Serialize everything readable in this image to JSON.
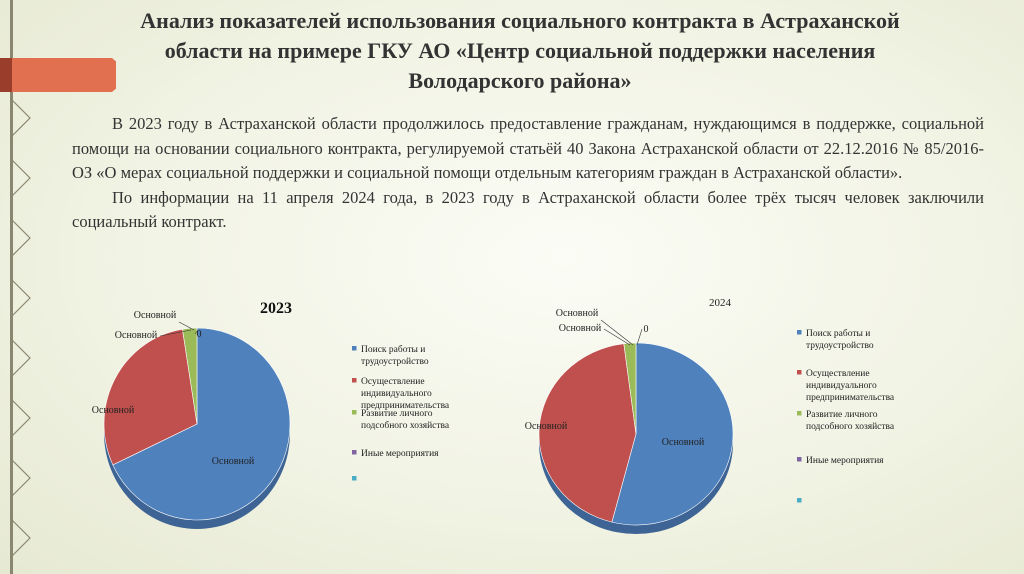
{
  "slide": {
    "title": "Анализ показателей использования социального контракта в Астраханской области на примере ГКУ АО «Центр социальной поддержки населения Володарского района»",
    "paragraphs": [
      "В 2023 году в Астраханской области продолжилось предоставление гражданам, нуждающимся в поддержке, социальной помощи на основании социального контракта, регулируемой статьёй 40 Закона Астраханской области от 22.12.2016 № 85/2016-ОЗ «О мерах социальной поддержки и социальной помощи отдельным категориям граждан в Астраханской области».",
      "По информации на 11 апреля 2024 года, в 2023 году в Астраханской области более трёх тысяч человек заключили социальный контракт."
    ],
    "colors": {
      "accent": "#e07050",
      "accent_dark": "#9a3d2a",
      "side_line": "#8a8670",
      "blue": "#4f81bd",
      "red": "#c0504d",
      "green": "#9bbb59",
      "purple": "#8064a2",
      "cyan": "#4bacc6"
    }
  },
  "chart_data": [
    {
      "type": "pie",
      "title": "2023",
      "categories": [
        "Поиск работы и трудоустройство",
        "Осуществление индивидуального предпринимательства",
        "Развитие личного подсобного хозяйства",
        "Иные мероприятия",
        ""
      ],
      "values": [
        68,
        29.5,
        2.5,
        0,
        0
      ],
      "data_labels": [
        "Основной",
        "Основной",
        "Основной",
        "Основной",
        "0"
      ],
      "legend_position": "right"
    },
    {
      "type": "pie",
      "title": "2024",
      "categories": [
        "Поиск работы и трудоустройство",
        "Осуществление индивидуального предпринимательства",
        "Развитие личного подсобного хозяйства",
        "Иные мероприятия",
        ""
      ],
      "values": [
        54,
        44,
        2,
        0,
        0
      ],
      "data_labels": [
        "Основной",
        "Основной",
        "Основной",
        "Основной",
        "0"
      ],
      "legend_position": "right"
    }
  ]
}
